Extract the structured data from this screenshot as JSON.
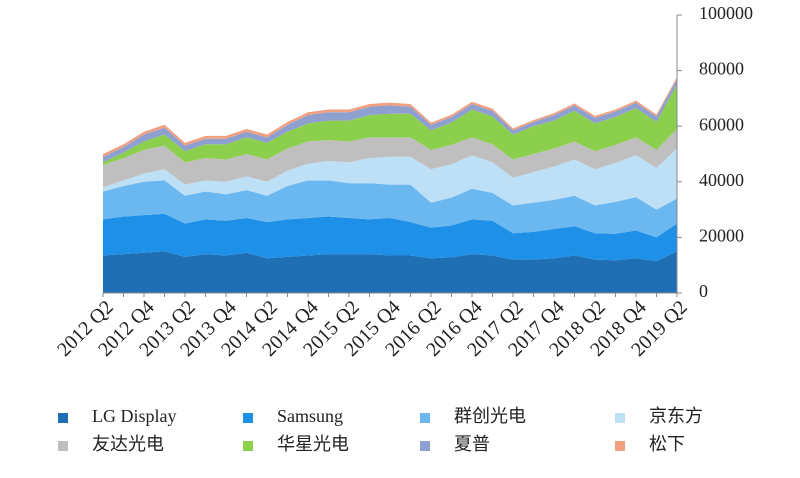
{
  "chart_data": {
    "type": "stacked-area",
    "categories": [
      "2012 Q2",
      null,
      "2012 Q4",
      null,
      "2013 Q2",
      null,
      "2013 Q4",
      null,
      "2014 Q2",
      null,
      "2014 Q4",
      null,
      "2015 Q2",
      null,
      "2015 Q4",
      null,
      "2016 Q2",
      null,
      "2016 Q4",
      null,
      "2017 Q2",
      null,
      "2017 Q4",
      null,
      "2018 Q2",
      null,
      "2018 Q4",
      null,
      "2019 Q2"
    ],
    "ylim": [
      0,
      100000
    ],
    "yticks": [
      0,
      20000,
      40000,
      60000,
      80000,
      100000
    ],
    "series": [
      {
        "name": "LG Display",
        "color": "#1f6fb5",
        "values": [
          13500,
          14000,
          14500,
          15000,
          13000,
          14000,
          13500,
          14500,
          12500,
          13000,
          13500,
          14000,
          14000,
          14000,
          13500,
          13500,
          12500,
          12800,
          14000,
          13500,
          12000,
          12000,
          12500,
          13500,
          12000,
          11800,
          12500,
          11500,
          15000
        ]
      },
      {
        "name": "Samsung",
        "color": "#1e90e8",
        "values": [
          13000,
          13500,
          13500,
          13500,
          12000,
          12500,
          12500,
          12500,
          13000,
          13500,
          13500,
          13500,
          13000,
          12500,
          13500,
          12000,
          11000,
          11500,
          12500,
          12500,
          9500,
          10000,
          10500,
          10500,
          9500,
          9500,
          10000,
          8500,
          10000
        ]
      },
      {
        "name": "群创光电",
        "color": "#6bb7ef",
        "values": [
          10000,
          11000,
          12000,
          12000,
          10000,
          10000,
          9500,
          10000,
          9500,
          12000,
          13500,
          13000,
          12500,
          13000,
          12000,
          13500,
          9000,
          10000,
          11000,
          10000,
          10000,
          10500,
          10500,
          11000,
          10000,
          11500,
          12000,
          10000,
          9000
        ]
      },
      {
        "name": "京东方",
        "color": "#bde0f7",
        "values": [
          1500,
          2000,
          3000,
          4000,
          4000,
          4000,
          4500,
          5000,
          5000,
          5500,
          6000,
          7000,
          7500,
          9000,
          10000,
          10000,
          12000,
          12000,
          12000,
          11000,
          10000,
          11000,
          12000,
          13000,
          13000,
          14000,
          15000,
          15000,
          18000
        ]
      },
      {
        "name": "友达光电",
        "color": "#bfbfbf",
        "values": [
          8000,
          8000,
          8500,
          8500,
          8000,
          8000,
          8000,
          8000,
          8000,
          8000,
          8000,
          7500,
          7500,
          7500,
          7000,
          7000,
          7000,
          7000,
          6500,
          6500,
          6500,
          6500,
          6500,
          6500,
          6500,
          6500,
          6500,
          6500,
          7000
        ]
      },
      {
        "name": "华星光电",
        "color": "#8ccf4d",
        "values": [
          1000,
          2000,
          3000,
          4000,
          4000,
          5000,
          5500,
          6000,
          6000,
          6000,
          6500,
          7000,
          7500,
          8000,
          8500,
          8500,
          7000,
          8000,
          10000,
          10000,
          9000,
          10000,
          10000,
          11000,
          10000,
          10000,
          10500,
          10000,
          16000
        ]
      },
      {
        "name": "夏普",
        "color": "#8ea0d0",
        "values": [
          2000,
          2000,
          2500,
          2500,
          2000,
          2000,
          2000,
          2000,
          2000,
          2500,
          3000,
          3000,
          3000,
          3000,
          3000,
          2500,
          2000,
          2000,
          2000,
          2000,
          1500,
          1500,
          2000,
          2000,
          2000,
          2000,
          2000,
          2000,
          2000
        ]
      },
      {
        "name": "松下",
        "color": "#f0a080",
        "values": [
          1000,
          1000,
          1000,
          1000,
          1000,
          1000,
          1000,
          1000,
          1000,
          1000,
          1000,
          1000,
          1000,
          1000,
          1000,
          1000,
          800,
          800,
          800,
          800,
          700,
          700,
          700,
          700,
          700,
          700,
          700,
          700,
          700
        ]
      }
    ]
  }
}
